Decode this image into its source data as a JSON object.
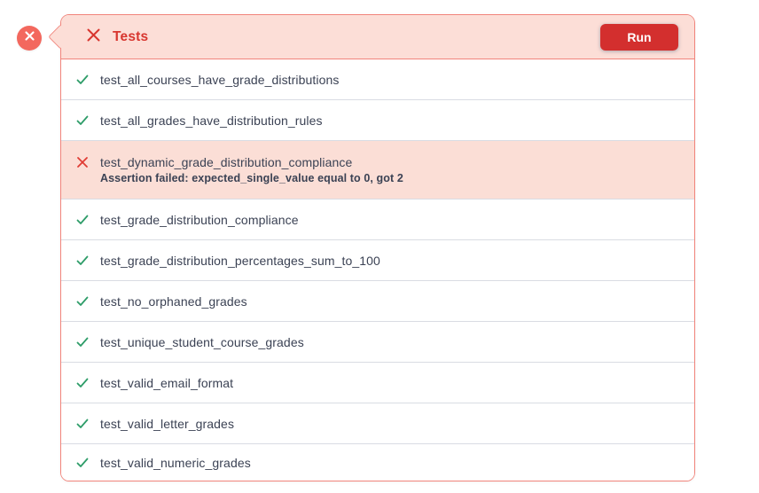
{
  "overlay": {
    "close_button": {
      "icon": "close-icon"
    }
  },
  "panel": {
    "header": {
      "close_icon": "close-icon",
      "title": "Tests",
      "run_label": "Run"
    },
    "tests": [
      {
        "name": "test_all_courses_have_grade_distributions",
        "status": "pass",
        "icon": "check-icon"
      },
      {
        "name": "test_all_grades_have_distribution_rules",
        "status": "pass",
        "icon": "check-icon"
      },
      {
        "name": "test_dynamic_grade_distribution_compliance",
        "status": "fail",
        "icon": "x-icon",
        "message": "Assertion failed: expected_single_value equal to 0, got 2"
      },
      {
        "name": "test_grade_distribution_compliance",
        "status": "pass",
        "icon": "check-icon"
      },
      {
        "name": "test_grade_distribution_percentages_sum_to_100",
        "status": "pass",
        "icon": "check-icon"
      },
      {
        "name": "test_no_orphaned_grades",
        "status": "pass",
        "icon": "check-icon"
      },
      {
        "name": "test_unique_student_course_grades",
        "status": "pass",
        "icon": "check-icon"
      },
      {
        "name": "test_valid_email_format",
        "status": "pass",
        "icon": "check-icon"
      },
      {
        "name": "test_valid_letter_grades",
        "status": "pass",
        "icon": "check-icon"
      },
      {
        "name": "test_valid_numeric_grades",
        "status": "pass",
        "icon": "check-icon"
      }
    ],
    "colors": {
      "accent_red": "#d8362f",
      "run_button_red": "#d32f2e",
      "salmon_border": "#f1847b",
      "pink_background": "#fcded7",
      "fail_row_background": "#fbded6",
      "pass_green": "#2d9c68",
      "row_text": "#3b4254",
      "separator": "#d9dce3",
      "close_circle": "#f3685e"
    }
  }
}
